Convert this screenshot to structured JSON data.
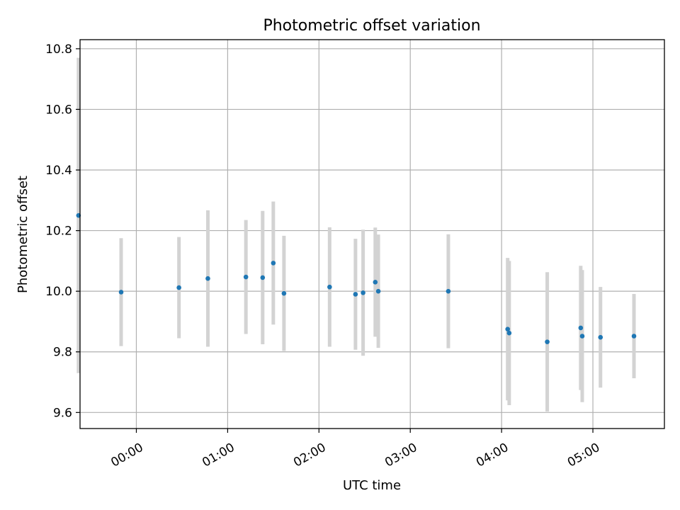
{
  "chart_data": {
    "type": "scatter",
    "title": "Photometric offset variation",
    "xlabel": "UTC time",
    "ylabel": "Photometric offset",
    "x_unit": "UTC time (HH:MM)",
    "xlim": [
      "-00:37",
      "05:47"
    ],
    "ylim": [
      9.547,
      10.83
    ],
    "x_ticks": [
      "00:00",
      "01:00",
      "02:00",
      "03:00",
      "04:00",
      "05:00"
    ],
    "y_ticks": [
      9.6,
      9.8,
      10.0,
      10.2,
      10.4,
      10.6,
      10.8
    ],
    "y_tick_labels": [
      "9.6",
      "9.8",
      "10.0",
      "10.2",
      "10.4",
      "10.6",
      "10.8"
    ],
    "grid": true,
    "legend": "none",
    "point_color": "#1f77b4",
    "errorbar_color": "#d3d3d3",
    "points": [
      {
        "time": "-00:38",
        "y": 10.25,
        "err": 0.52
      },
      {
        "time": "-00:10",
        "y": 9.997,
        "err": 0.178
      },
      {
        "time": "00:28",
        "y": 10.012,
        "err": 0.167
      },
      {
        "time": "00:47",
        "y": 10.042,
        "err": 0.225
      },
      {
        "time": "01:12",
        "y": 10.047,
        "err": 0.188
      },
      {
        "time": "01:23",
        "y": 10.045,
        "err": 0.22
      },
      {
        "time": "01:30",
        "y": 10.093,
        "err": 0.203
      },
      {
        "time": "01:37",
        "y": 9.993,
        "err": 0.19
      },
      {
        "time": "02:07",
        "y": 10.014,
        "err": 0.197
      },
      {
        "time": "02:24",
        "y": 9.99,
        "err": 0.183
      },
      {
        "time": "02:29",
        "y": 9.995,
        "err": 0.208
      },
      {
        "time": "02:37",
        "y": 10.03,
        "err": 0.18
      },
      {
        "time": "02:39",
        "y": 10.0,
        "err": 0.187
      },
      {
        "time": "03:25",
        "y": 10.0,
        "err": 0.188
      },
      {
        "time": "04:04",
        "y": 9.875,
        "err": 0.235
      },
      {
        "time": "04:05",
        "y": 9.862,
        "err": 0.238
      },
      {
        "time": "04:30",
        "y": 9.833,
        "err": 0.23
      },
      {
        "time": "04:52",
        "y": 9.879,
        "err": 0.205
      },
      {
        "time": "04:53",
        "y": 9.852,
        "err": 0.218
      },
      {
        "time": "05:05",
        "y": 9.848,
        "err": 0.166
      },
      {
        "time": "05:27",
        "y": 9.852,
        "err": 0.139
      }
    ]
  }
}
